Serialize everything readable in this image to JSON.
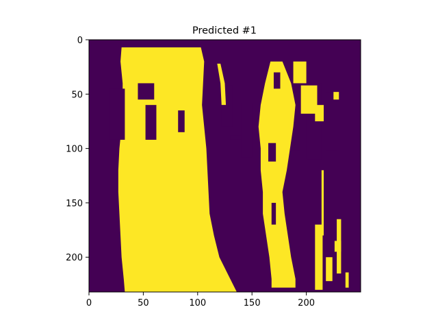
{
  "chart_data": {
    "type": "heatmap",
    "title": "Predicted #1",
    "xlabel": "",
    "ylabel": "",
    "x_ticks": [
      0,
      50,
      100,
      150,
      200
    ],
    "y_ticks": [
      0,
      50,
      100,
      150,
      200
    ],
    "xlim": [
      0,
      250
    ],
    "ylim": [
      232,
      0
    ],
    "grid": false,
    "legend": "none",
    "colors": {
      "background_value_0": "#440154",
      "foreground_value_1": "#fde725"
    },
    "regions": [
      {
        "name": "left-column",
        "value": 1,
        "outline_x_at_y": [
          [
            7,
            30,
            103
          ],
          [
            20,
            29,
            106
          ],
          [
            40,
            31,
            105
          ],
          [
            60,
            31,
            104
          ],
          [
            80,
            30,
            106
          ],
          [
            100,
            28,
            108
          ],
          [
            120,
            27,
            109
          ],
          [
            140,
            27,
            110
          ],
          [
            160,
            28,
            111
          ],
          [
            180,
            29,
            115
          ],
          [
            200,
            30,
            120
          ],
          [
            220,
            32,
            130
          ],
          [
            232,
            33,
            136
          ]
        ],
        "holes": [
          [
            45,
            19,
            92,
            33
          ],
          [
            40,
            45,
            55,
            60
          ],
          [
            60,
            52,
            92,
            62
          ],
          [
            65,
            82,
            85,
            88
          ],
          [
            42,
            122,
            80,
            132
          ],
          [
            58,
            140,
            108,
            150
          ],
          [
            88,
            130,
            92,
            140
          ],
          [
            42,
            168,
            60,
            178
          ],
          [
            60,
            184,
            102,
            194
          ],
          [
            40,
            200,
            110,
            214
          ],
          [
            48,
            218,
            102,
            228
          ]
        ]
      },
      {
        "name": "thin-streak",
        "value": 1,
        "outline_x_at_y": [
          [
            22,
            118,
            121
          ],
          [
            40,
            121,
            125
          ],
          [
            60,
            122,
            126
          ]
        ]
      },
      {
        "name": "right-column",
        "value": 1,
        "outline_x_at_y": [
          [
            20,
            167,
            178
          ],
          [
            40,
            162,
            186
          ],
          [
            60,
            158,
            190
          ],
          [
            80,
            156,
            188
          ],
          [
            100,
            158,
            185
          ],
          [
            120,
            158,
            182
          ],
          [
            140,
            160,
            178
          ],
          [
            160,
            160,
            180
          ],
          [
            180,
            163,
            183
          ],
          [
            200,
            166,
            186
          ],
          [
            220,
            168,
            190
          ],
          [
            228,
            168,
            190
          ]
        ],
        "holes": [
          [
            30,
            170,
            45,
            176
          ],
          [
            95,
            165,
            112,
            172
          ],
          [
            150,
            168,
            170,
            172
          ]
        ]
      },
      {
        "name": "speckles",
        "value": 1,
        "boxes": [
          [
            20,
            188,
            40,
            200
          ],
          [
            42,
            195,
            68,
            210
          ],
          [
            60,
            208,
            75,
            216
          ],
          [
            48,
            225,
            55,
            230
          ],
          [
            165,
            228,
            215,
            232
          ],
          [
            170,
            208,
            230,
            215
          ],
          [
            200,
            218,
            222,
            224
          ],
          [
            214,
            236,
            228,
            239
          ],
          [
            185,
            226,
            195,
            232
          ],
          [
            120,
            214,
            180,
            216
          ]
        ]
      }
    ]
  }
}
